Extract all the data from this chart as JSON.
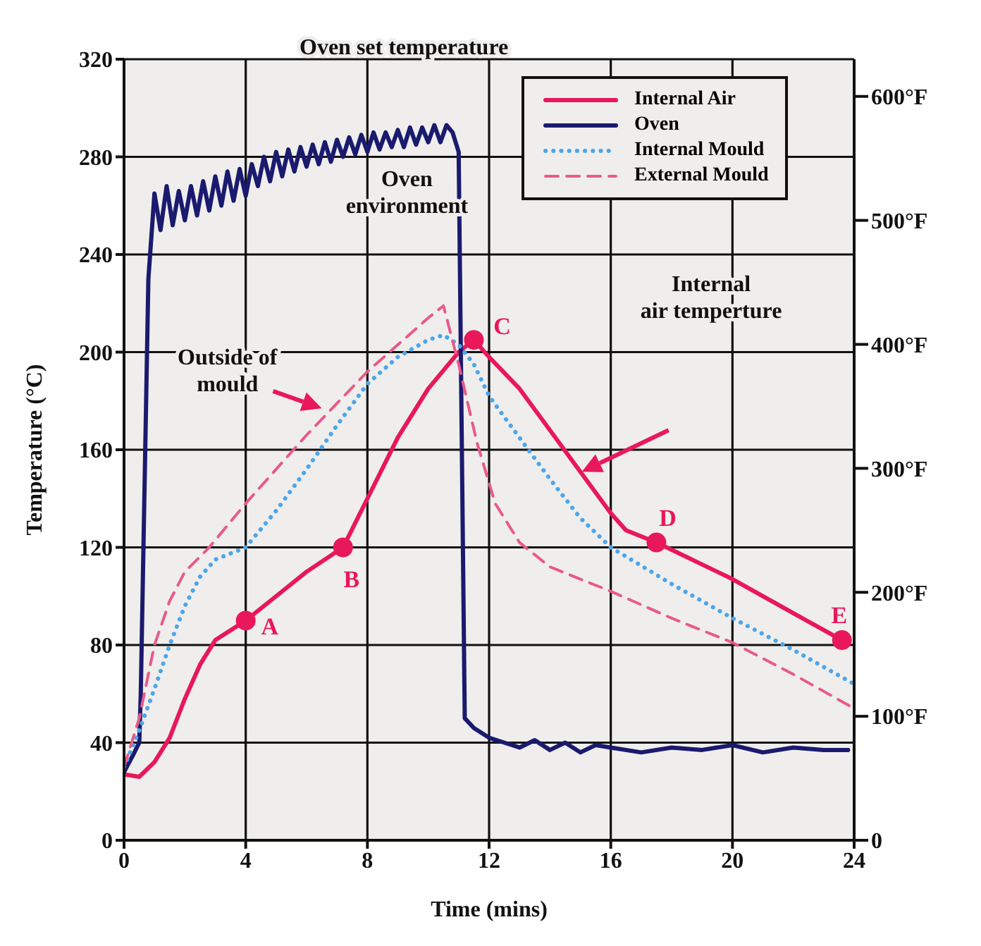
{
  "chart_data": {
    "type": "line",
    "xlabel": "Time (mins)",
    "ylabel": "Temperature (°C)",
    "xlim": [
      0,
      24
    ],
    "xticks": [
      0,
      4,
      8,
      12,
      16,
      20,
      24
    ],
    "ylim": [
      0,
      320
    ],
    "yticks": [
      0,
      40,
      80,
      120,
      160,
      200,
      240,
      280,
      320
    ],
    "y2lim": [
      0,
      630
    ],
    "y2ticks": [
      0,
      {
        "value": 100,
        "label": "100°F"
      },
      {
        "value": 200,
        "label": "200°F"
      },
      {
        "value": 300,
        "label": "300°F"
      },
      {
        "value": 400,
        "label": "400°F"
      },
      {
        "value": 500,
        "label": "500°F"
      },
      {
        "value": 600,
        "label": "600°F"
      }
    ],
    "grid": true,
    "legend": "top right",
    "series": [
      {
        "name": "Internal Air",
        "color": "#e8185a",
        "line_style": "solid",
        "x": [
          0,
          0.5,
          1,
          1.5,
          2,
          2.5,
          3,
          4,
          5,
          6,
          7.2,
          8,
          9,
          10,
          11,
          11.5,
          12,
          13,
          14,
          15,
          16,
          16.5,
          17.5,
          20,
          22,
          23.6
        ],
        "values": [
          27,
          26,
          32,
          42,
          58,
          72,
          82,
          90,
          100,
          110,
          120,
          140,
          165,
          185,
          200,
          205,
          198,
          185,
          168,
          151,
          134,
          127,
          122,
          107,
          93,
          82
        ]
      },
      {
        "name": "Oven",
        "color": "#1a1a6e",
        "line_style": "solid",
        "x": [
          0,
          0.3,
          0.5,
          0.55,
          0.8,
          1.0,
          1.2,
          1.4,
          1.6,
          1.8,
          2.0,
          2.2,
          2.4,
          2.6,
          2.8,
          3.0,
          3.2,
          3.4,
          3.6,
          3.8,
          4.0,
          4.2,
          4.4,
          4.6,
          4.8,
          5.0,
          5.2,
          5.4,
          5.6,
          5.8,
          6.0,
          6.2,
          6.4,
          6.6,
          6.8,
          7.0,
          7.2,
          7.4,
          7.6,
          7.8,
          8.0,
          8.2,
          8.4,
          8.6,
          8.8,
          9.0,
          9.2,
          9.4,
          9.6,
          9.8,
          10.0,
          10.2,
          10.4,
          10.6,
          10.8,
          11.0,
          11.2,
          11.5,
          12,
          12.5,
          13,
          13.5,
          14,
          14.5,
          15,
          15.5,
          16,
          17,
          18,
          19,
          20,
          21,
          22,
          23,
          23.8
        ],
        "values": [
          28,
          35,
          40,
          60,
          230,
          265,
          250,
          268,
          252,
          266,
          254,
          268,
          256,
          270,
          258,
          272,
          260,
          274,
          262,
          275,
          264,
          277,
          268,
          280,
          270,
          282,
          272,
          283,
          274,
          284,
          276,
          285,
          277,
          286,
          278,
          287,
          280,
          288,
          281,
          289,
          282,
          290,
          283,
          290,
          284,
          291,
          284,
          292,
          285,
          292,
          286,
          293,
          286,
          293,
          290,
          282,
          50,
          46,
          42,
          40,
          38,
          41,
          37,
          40,
          36,
          39,
          38,
          36,
          38,
          37,
          39,
          36,
          38,
          37,
          37
        ]
      },
      {
        "name": "Internal Mould",
        "color": "#4da6e8",
        "line_style": "dotted",
        "x": [
          0,
          0.5,
          1,
          1.5,
          2,
          2.5,
          3,
          4,
          5,
          6,
          7,
          8,
          9,
          10,
          10.5,
          11,
          11.5,
          12,
          12.7,
          14,
          15,
          16,
          18,
          20,
          22,
          24
        ],
        "values": [
          30,
          45,
          62,
          80,
          96,
          108,
          115,
          120,
          135,
          152,
          170,
          187,
          198,
          205,
          207,
          203,
          195,
          182,
          170,
          148,
          132,
          120,
          105,
          91,
          78,
          64
        ]
      },
      {
        "name": "External Mould",
        "color": "#e85a8a",
        "line_style": "dashed",
        "x": [
          0,
          0.5,
          1,
          1.5,
          2,
          2.8,
          4,
          5,
          6,
          7,
          8,
          9,
          10,
          10.5,
          11,
          11.6,
          12.2,
          13,
          14,
          16,
          18,
          20,
          22,
          24
        ],
        "values": [
          30,
          50,
          80,
          98,
          110,
          120,
          138,
          152,
          166,
          179,
          192,
          203,
          214,
          219,
          195,
          163,
          138,
          122,
          112,
          102,
          91,
          81,
          68,
          54
        ]
      },
      {
        "type": "scatter",
        "color": "#e8185a",
        "marker": "circle",
        "x": [
          4,
          7.2,
          11.5,
          17.5,
          23.6
        ],
        "values": [
          90,
          120,
          205,
          122,
          82
        ]
      }
    ],
    "annotations": [
      "Oven set temperature",
      "Oven environment",
      "Outside of mould",
      "Internal air temperture",
      {
        "text": "A",
        "x": 4,
        "y": 90
      },
      {
        "text": "B",
        "x": 7.2,
        "y": 120
      },
      {
        "text": "C",
        "x": 11.5,
        "y": 205
      },
      {
        "text": "D",
        "x": 17.5,
        "y": 122
      },
      {
        "text": "E",
        "x": 23.6,
        "y": 82
      }
    ]
  }
}
